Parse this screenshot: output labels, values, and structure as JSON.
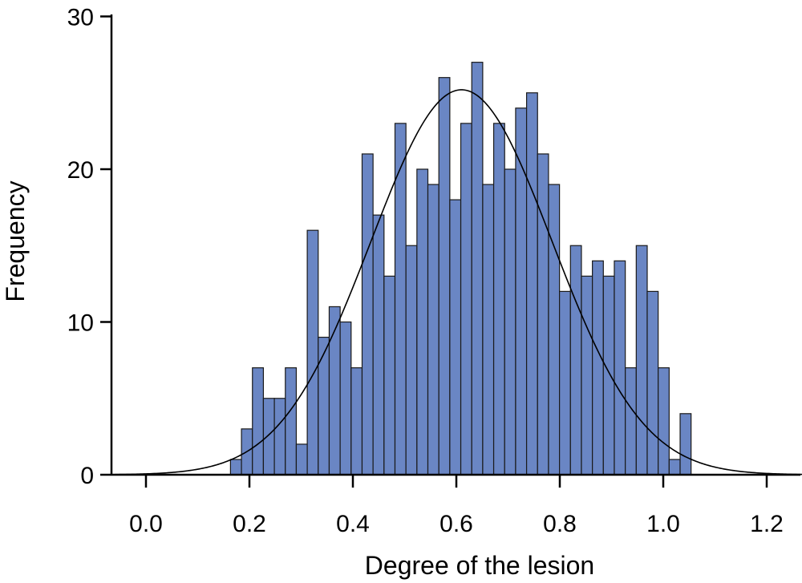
{
  "chart_data": {
    "type": "bar",
    "subtype": "histogram",
    "xlabel": "Degree of the lesion",
    "ylabel": "Frequency",
    "xlim": [
      -0.06,
      1.27
    ],
    "ylim": [
      0,
      30
    ],
    "x_ticks": [
      "0.0",
      "0.2",
      "0.4",
      "0.6",
      "0.8",
      "1.0",
      "1.2"
    ],
    "y_ticks": [
      "0",
      "10",
      "20",
      "30"
    ],
    "bin_width": 0.0212,
    "bin_start": 0.1634,
    "values": [
      1,
      3,
      7,
      5,
      5,
      7,
      2,
      16,
      9,
      11,
      10,
      7,
      21,
      17,
      13,
      23,
      15,
      20,
      19,
      26,
      18,
      23,
      27,
      19,
      23,
      20,
      24,
      25,
      21,
      19,
      12,
      15,
      13,
      14,
      13,
      14,
      7,
      15,
      12,
      7,
      1,
      4
    ],
    "bar_color": "#6a86c4",
    "bar_edge_color": "#1a1a1a",
    "fit_curve": {
      "type": "normal",
      "mean": 0.61,
      "sd": 0.175,
      "peak": 25.2
    },
    "grid": false,
    "legend": false
  }
}
